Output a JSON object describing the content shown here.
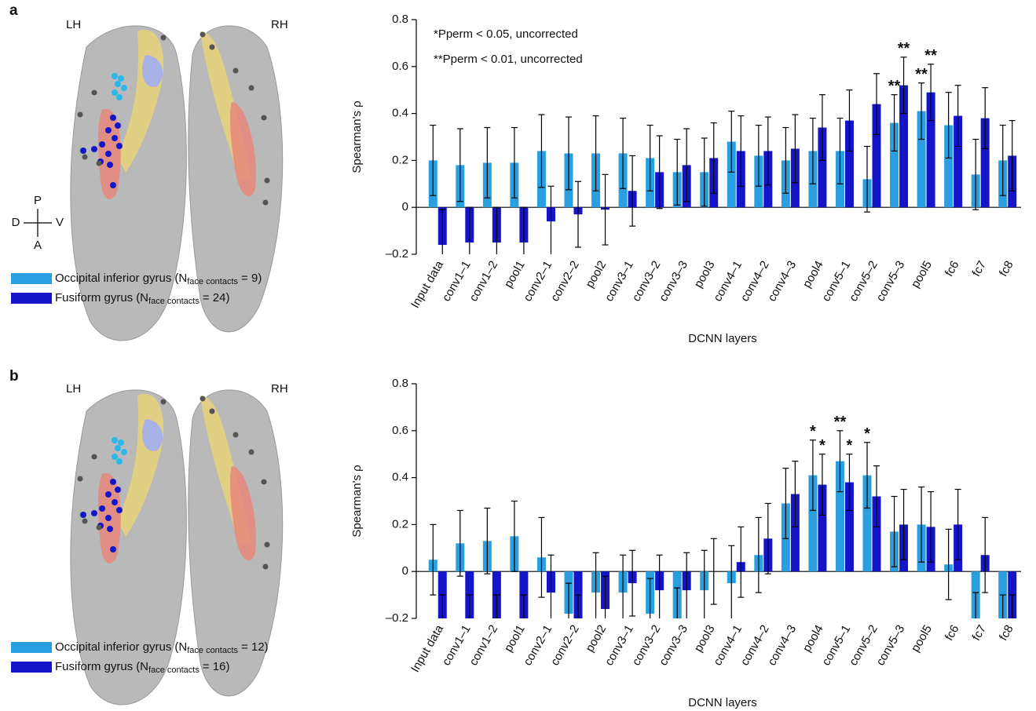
{
  "chart_data": [
    {
      "type": "bar",
      "panel_label": "a",
      "hemisphere_labels": [
        "LH",
        "RH"
      ],
      "orientation_labels": [
        "P",
        "D",
        "V",
        "A"
      ],
      "y_label": "Spearman's ρ",
      "x_label": "DCNN layers",
      "annotations": [
        "*Pperm < 0.05, uncorrected",
        "**Pperm < 0.01, uncorrected"
      ],
      "categories": [
        "Input data",
        "conv1–1",
        "conv1–2",
        "pool1",
        "conv2–1",
        "conv2–2",
        "pool2",
        "conv3–1",
        "conv3–2",
        "conv3–3",
        "pool3",
        "conv4–1",
        "conv4–2",
        "conv4–3",
        "pool4",
        "conv5–1",
        "conv5–2",
        "conv5–3",
        "pool5",
        "fc6",
        "fc7",
        "fc8"
      ],
      "ylim": [
        -0.2,
        0.8
      ],
      "yticks": [
        {
          "value": -0.2,
          "label": "–0.2"
        },
        0,
        0.2,
        0.4,
        0.6,
        0.8
      ],
      "series": [
        {
          "name": "Occipital inferior gyrus",
          "legend_count": {
            "prefix": "(N",
            "subscript": "face contacts",
            "suffix": "= 9)"
          },
          "color": "#2a9fe0",
          "values": [
            0.2,
            0.18,
            0.19,
            0.19,
            0.24,
            0.23,
            0.23,
            0.23,
            0.21,
            0.15,
            0.15,
            0.28,
            0.22,
            0.2,
            0.24,
            0.24,
            0.12,
            0.36,
            0.41,
            0.35,
            0.14,
            0.2
          ],
          "errors": [
            0.15,
            0.155,
            0.15,
            0.15,
            0.155,
            0.155,
            0.16,
            0.15,
            0.14,
            0.14,
            0.145,
            0.13,
            0.13,
            0.14,
            0.14,
            0.14,
            0.14,
            0.12,
            0.12,
            0.14,
            0.15,
            0.15
          ],
          "significance": [
            null,
            null,
            null,
            null,
            null,
            null,
            null,
            null,
            null,
            null,
            null,
            null,
            null,
            null,
            null,
            null,
            null,
            "**",
            "**",
            null,
            null,
            null
          ]
        },
        {
          "name": "Fusiform gyrus",
          "legend_count": {
            "prefix": "(N",
            "subscript": "face contacts",
            "suffix": "= 24)"
          },
          "color": "#1414c8",
          "values": [
            -0.16,
            -0.15,
            -0.15,
            -0.15,
            -0.06,
            -0.03,
            -0.01,
            0.07,
            0.15,
            0.18,
            0.21,
            0.24,
            0.24,
            0.25,
            0.34,
            0.37,
            0.44,
            0.52,
            0.49,
            0.39,
            0.38,
            0.22
          ],
          "errors": [
            0.15,
            0.15,
            0.15,
            0.15,
            0.15,
            0.14,
            0.15,
            0.15,
            0.155,
            0.155,
            0.15,
            0.15,
            0.145,
            0.145,
            0.14,
            0.13,
            0.13,
            0.12,
            0.12,
            0.13,
            0.13,
            0.15
          ],
          "significance": [
            null,
            null,
            null,
            null,
            null,
            null,
            null,
            null,
            null,
            null,
            null,
            null,
            null,
            null,
            null,
            null,
            null,
            "**",
            "**",
            null,
            null,
            null
          ]
        }
      ]
    },
    {
      "type": "bar",
      "panel_label": "b",
      "hemisphere_labels": [
        "LH",
        "RH"
      ],
      "y_label": "Spearman's ρ",
      "x_label": "DCNN layers",
      "categories": [
        "Input data",
        "conv1–1",
        "conv1–2",
        "pool1",
        "conv2–1",
        "conv2–2",
        "pool2",
        "conv3–1",
        "conv3–2",
        "conv3–3",
        "pool3",
        "conv4–1",
        "conv4–2",
        "conv4–3",
        "pool4",
        "conv5–1",
        "conv5–2",
        "conv5–3",
        "pool5",
        "fc6",
        "fc7",
        "fc8"
      ],
      "ylim": [
        -0.2,
        0.8
      ],
      "yticks": [
        {
          "value": -0.2,
          "label": "–0.2"
        },
        0,
        0.2,
        0.4,
        0.6,
        0.8
      ],
      "series": [
        {
          "name": "Occipital inferior gyrus",
          "legend_count": {
            "prefix": "(N",
            "subscript": "face contacts",
            "suffix": "= 12)"
          },
          "color": "#2a9fe0",
          "values": [
            0.05,
            0.12,
            0.13,
            0.15,
            0.06,
            -0.18,
            -0.09,
            -0.09,
            -0.18,
            -0.21,
            -0.08,
            -0.05,
            0.07,
            0.29,
            0.41,
            0.47,
            0.41,
            0.17,
            0.2,
            0.03,
            -0.22,
            -0.25
          ],
          "errors": [
            0.15,
            0.14,
            0.14,
            0.15,
            0.17,
            0.13,
            0.17,
            0.16,
            0.15,
            0.14,
            0.17,
            0.16,
            0.16,
            0.15,
            0.15,
            0.13,
            0.14,
            0.15,
            0.16,
            0.15,
            0.13,
            0.15
          ],
          "significance": [
            null,
            null,
            null,
            null,
            null,
            null,
            null,
            null,
            null,
            null,
            null,
            null,
            null,
            null,
            "*",
            "**",
            "*",
            null,
            null,
            null,
            null,
            null
          ]
        },
        {
          "name": "Fusiform gyrus",
          "legend_count": {
            "prefix": "(N",
            "subscript": "face contacts",
            "suffix": "= 16)"
          },
          "color": "#1414c8",
          "values": [
            -0.25,
            -0.25,
            -0.25,
            -0.25,
            -0.09,
            -0.21,
            -0.16,
            -0.05,
            -0.08,
            -0.08,
            0.0,
            0.04,
            0.14,
            0.33,
            0.37,
            0.38,
            0.32,
            0.2,
            0.19,
            0.2,
            0.07,
            -0.25
          ],
          "errors": [
            0.15,
            0.15,
            0.15,
            0.15,
            0.16,
            0.11,
            0.14,
            0.14,
            0.15,
            0.16,
            0.14,
            0.15,
            0.15,
            0.14,
            0.13,
            0.12,
            0.13,
            0.15,
            0.15,
            0.15,
            0.16,
            0.15
          ],
          "significance": [
            null,
            null,
            null,
            null,
            null,
            null,
            null,
            null,
            null,
            null,
            null,
            null,
            null,
            null,
            "*",
            "*",
            null,
            null,
            null,
            null,
            null,
            null
          ]
        }
      ]
    }
  ]
}
